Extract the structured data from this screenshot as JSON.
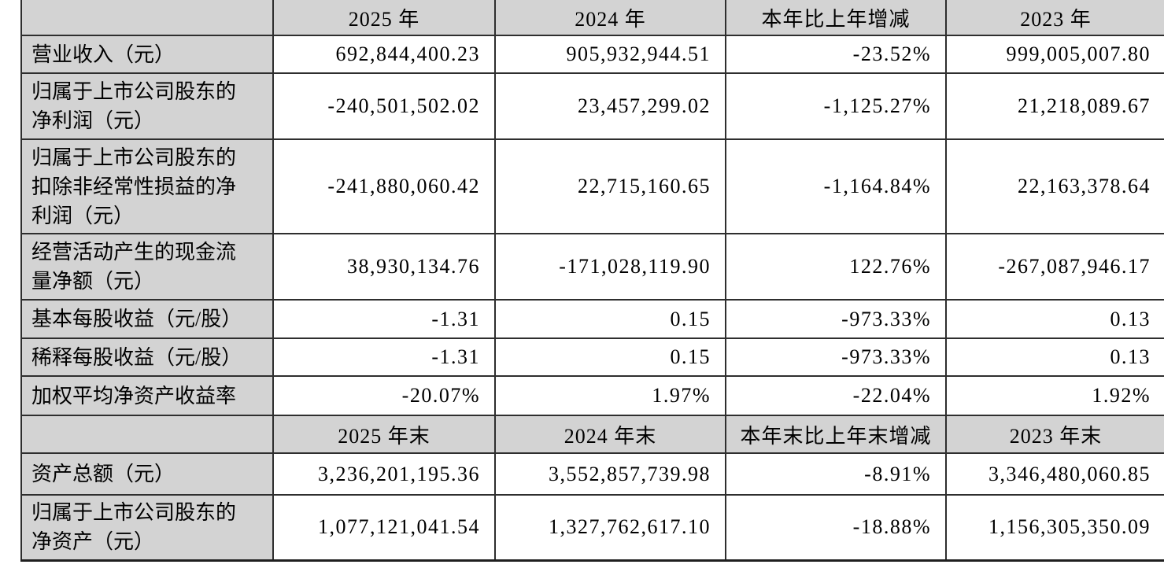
{
  "colors": {
    "header_bg": "#d3d3d3",
    "label_bg": "#d3d3d3",
    "cell_bg": "#ffffff",
    "border": "#2e2e2e",
    "text": "#000000"
  },
  "table": {
    "section1": {
      "headers": [
        "",
        "2025 年",
        "2024 年",
        "本年比上年增减",
        "2023 年"
      ],
      "rows": [
        {
          "label": "营业收入（元）",
          "values": [
            "692,844,400.23",
            "905,932,944.51",
            "-23.52%",
            "999,005,007.80"
          ]
        },
        {
          "label": "归属于上市公司股东的\n净利润（元）",
          "values": [
            "-240,501,502.02",
            "23,457,299.02",
            "-1,125.27%",
            "21,218,089.67"
          ]
        },
        {
          "label": "归属于上市公司股东的\n扣除非经常性损益的净\n利润（元）",
          "values": [
            "-241,880,060.42",
            "22,715,160.65",
            "-1,164.84%",
            "22,163,378.64"
          ]
        },
        {
          "label": "经营活动产生的现金流\n量净额（元）",
          "values": [
            "38,930,134.76",
            "-171,028,119.90",
            "122.76%",
            "-267,087,946.17"
          ]
        },
        {
          "label": "基本每股收益（元/股）",
          "values": [
            "-1.31",
            "0.15",
            "-973.33%",
            "0.13"
          ]
        },
        {
          "label": "稀释每股收益（元/股）",
          "values": [
            "-1.31",
            "0.15",
            "-973.33%",
            "0.13"
          ]
        },
        {
          "label": "加权平均净资产收益率",
          "values": [
            "-20.07%",
            "1.97%",
            "-22.04%",
            "1.92%"
          ]
        }
      ]
    },
    "section2": {
      "headers": [
        "",
        "2025 年末",
        "2024 年末",
        "本年末比上年末增减",
        "2023 年末"
      ],
      "rows": [
        {
          "label": "资产总额（元）",
          "values": [
            "3,236,201,195.36",
            "3,552,857,739.98",
            "-8.91%",
            "3,346,480,060.85"
          ]
        },
        {
          "label": "归属于上市公司股东的\n净资产（元）",
          "values": [
            "1,077,121,041.54",
            "1,327,762,617.10",
            "-18.88%",
            "1,156,305,350.09"
          ]
        }
      ]
    }
  }
}
